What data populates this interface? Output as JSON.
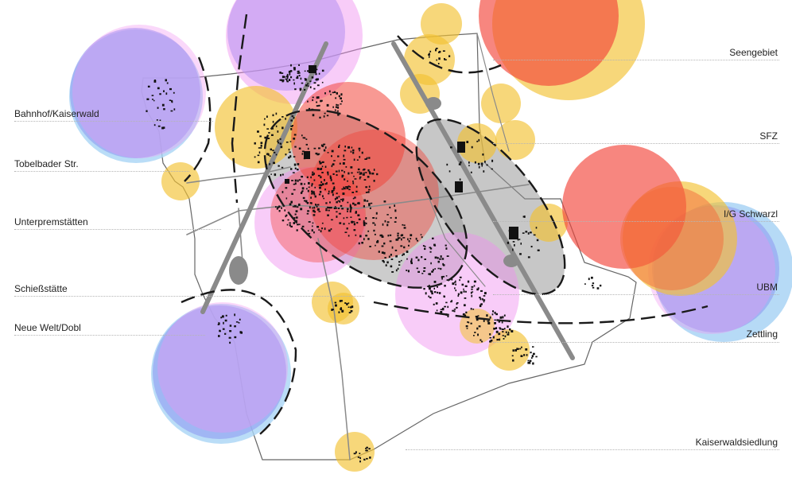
{
  "map": {
    "labels_left": [
      "Bahnhof/Kaiserwald",
      "Tobelbader Str.",
      "Unterpremstätten",
      "Schießstätte",
      "Neue Welt/Dobl"
    ],
    "labels_right": [
      "Seengebiet",
      "SFZ",
      "I/G Schwarzl",
      "UBM",
      "Zettling",
      "Kaiserwaldsiedlung"
    ],
    "colors": {
      "blue": "#8f9cf2",
      "light_blue": "#a9d4f5",
      "pink": "#f08ef0",
      "yellow": "#f2c232",
      "red": "#f2453a",
      "orange": "#f36a3a",
      "grey_zone": "#9a9a9a",
      "road": "#8a8a8a",
      "dashed": "#1a1a1a"
    }
  }
}
